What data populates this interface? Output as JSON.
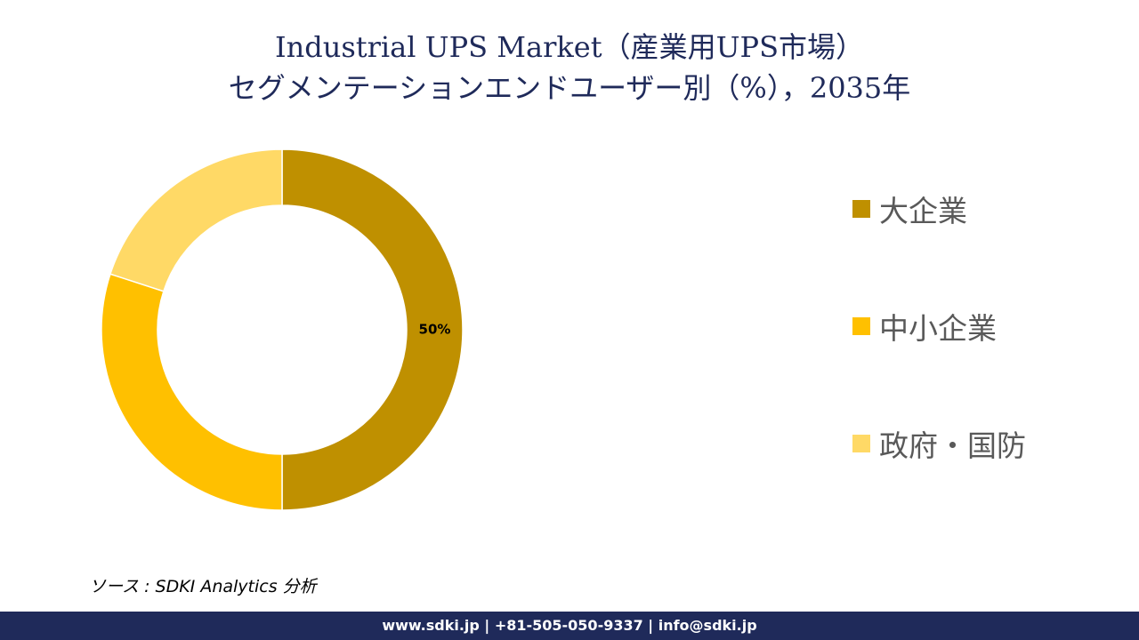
{
  "title": {
    "line1": "Industrial UPS Market（産業用UPS市場）",
    "line2": "セグメンテーションエンドユーザー別（%），2035年"
  },
  "chart_data": {
    "type": "pie",
    "variant": "donut",
    "categories": [
      "大企業",
      "中小企業",
      "政府・国防"
    ],
    "values": [
      50,
      30,
      20
    ],
    "colors": [
      "#bf9000",
      "#ffc000",
      "#ffd966"
    ],
    "data_labels": [
      "50%",
      "",
      ""
    ],
    "legend_position": "right"
  },
  "legend": {
    "items": [
      {
        "label": "大企業",
        "color": "#bf9000"
      },
      {
        "label": "中小企業",
        "color": "#ffc000"
      },
      {
        "label": "政府・国防",
        "color": "#ffd966"
      }
    ]
  },
  "source": "ソース : SDKI Analytics  分析",
  "footer": "www.sdki.jp | +81-505-050-9337 | info@sdki.jp"
}
